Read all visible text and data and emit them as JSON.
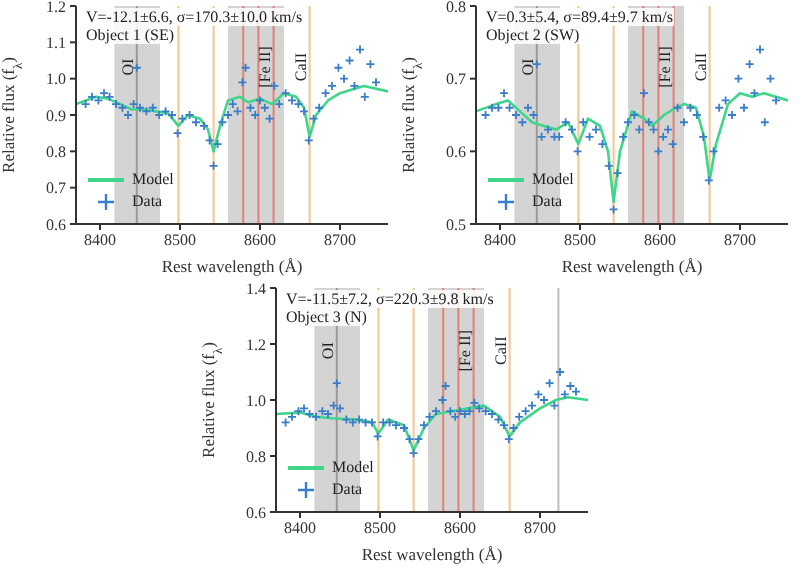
{
  "chart_data": [
    {
      "type": "line",
      "xlabel": "Rest wavelength (Å)",
      "ylabel": "Relative flux (f$_{λ}$)",
      "xlim": [
        8370,
        8760
      ],
      "xticks": [
        8400,
        8500,
        8600,
        8700
      ],
      "ylim": [
        0.6,
        1.2
      ],
      "yticks": [
        0.6,
        0.7,
        0.8,
        0.9,
        {
          "value": 1,
          "label": "1.0"
        },
        1.1,
        1.2
      ],
      "legend": "bottom left",
      "grid": false,
      "annotations": [
        "V=-12.1±6.6, σ=170.3±10.0 km/s",
        "Object 1 (SE)"
      ],
      "bands": [
        {
          "axis": "x",
          "from": 8418,
          "to": 8475,
          "color": "#d4d4d4"
        },
        {
          "axis": "x",
          "from": 8560,
          "to": 8630,
          "color": "#d4d4d4"
        }
      ],
      "ref_lines": [
        {
          "axis": "x",
          "value": 8446,
          "label": "OI",
          "color": "#999999"
        },
        {
          "axis": "x",
          "value": 8498,
          "color": "#f7c48a"
        },
        {
          "axis": "x",
          "value": 8542,
          "color": "#f7c48a"
        },
        {
          "axis": "x",
          "value": 8579,
          "color": "#e0826e"
        },
        {
          "axis": "x",
          "value": 8598,
          "color": "#e0826e"
        },
        {
          "axis": "x",
          "value": 8617,
          "label": "[Fe II]",
          "color": "#e0826e"
        },
        {
          "axis": "x",
          "value": 8662,
          "label": "CaII",
          "color": "#f7c48a"
        }
      ],
      "series": [
        {
          "name": "Model",
          "type": "line",
          "color": "#3ed68a",
          "marker": "none",
          "x": [
            8370,
            8395,
            8410,
            8425,
            8440,
            8455,
            8470,
            8485,
            8498,
            8510,
            8525,
            8535,
            8542,
            8550,
            8560,
            8575,
            8585,
            8600,
            8615,
            8630,
            8645,
            8655,
            8662,
            8670,
            8685,
            8700,
            8715,
            8730,
            8760
          ],
          "values": [
            0.93,
            0.95,
            0.945,
            0.93,
            0.915,
            0.915,
            0.91,
            0.905,
            0.87,
            0.9,
            0.89,
            0.86,
            0.8,
            0.87,
            0.94,
            0.95,
            0.935,
            0.945,
            0.93,
            0.96,
            0.95,
            0.92,
            0.84,
            0.9,
            0.94,
            0.96,
            0.97,
            0.98,
            0.965
          ]
        },
        {
          "name": "Data",
          "type": "scatter",
          "color": "#3a7dc9",
          "marker": "cross",
          "x": [
            8382,
            8390,
            8398,
            8405,
            8412,
            8420,
            8428,
            8435,
            8442,
            8446,
            8450,
            8458,
            8466,
            8474,
            8482,
            8490,
            8497,
            8503,
            8512,
            8520,
            8530,
            8537,
            8542,
            8547,
            8553,
            8560,
            8566,
            8572,
            8578,
            8582,
            8588,
            8594,
            8600,
            8606,
            8612,
            8618,
            8624,
            8632,
            8640,
            8648,
            8655,
            8661,
            8667,
            8674,
            8682,
            8690,
            8698,
            8705,
            8712,
            8718,
            8725,
            8731,
            8738,
            8745
          ],
          "values": [
            0.93,
            0.95,
            0.94,
            0.96,
            0.95,
            0.93,
            0.92,
            0.9,
            0.93,
            1.03,
            0.92,
            0.91,
            0.92,
            0.9,
            0.91,
            0.9,
            0.85,
            0.89,
            0.9,
            0.88,
            0.87,
            0.83,
            0.76,
            0.82,
            0.88,
            0.9,
            0.93,
            0.91,
            0.99,
            1.03,
            0.92,
            0.9,
            0.94,
            0.92,
            0.89,
            0.98,
            0.93,
            0.96,
            0.94,
            0.93,
            0.91,
            0.83,
            0.89,
            0.92,
            0.96,
            0.98,
            1.03,
            1.0,
            1.05,
            0.98,
            1.08,
            0.95,
            1.04,
            0.99
          ]
        }
      ]
    },
    {
      "type": "line",
      "xlabel": "Rest wavelength (Å)",
      "ylabel": "Relative flux (f$_{λ}$)",
      "xlim": [
        8370,
        8760
      ],
      "xticks": [
        8400,
        8500,
        8600,
        8700
      ],
      "ylim": [
        0.5,
        0.8
      ],
      "yticks": [
        0.5,
        0.6,
        0.7,
        0.8
      ],
      "legend": "bottom left",
      "grid": false,
      "annotations": [
        "V=0.3±5.4, σ=89.4±9.7 km/s",
        "Object 2 (SW)"
      ],
      "bands": [
        {
          "axis": "x",
          "from": 8418,
          "to": 8475,
          "color": "#d4d4d4"
        },
        {
          "axis": "x",
          "from": 8560,
          "to": 8630,
          "color": "#d4d4d4"
        }
      ],
      "ref_lines": [
        {
          "axis": "x",
          "value": 8446,
          "label": "OI",
          "color": "#999999"
        },
        {
          "axis": "x",
          "value": 8498,
          "color": "#f7c48a"
        },
        {
          "axis": "x",
          "value": 8542,
          "color": "#f7c48a"
        },
        {
          "axis": "x",
          "value": 8579,
          "color": "#e0826e"
        },
        {
          "axis": "x",
          "value": 8598,
          "color": "#e0826e"
        },
        {
          "axis": "x",
          "value": 8617,
          "label": "[Fe II]",
          "color": "#e0826e"
        },
        {
          "axis": "x",
          "value": 8662,
          "label": "CaII",
          "color": "#f7c48a"
        }
      ],
      "series": [
        {
          "name": "Model",
          "type": "line",
          "color": "#3ed68a",
          "marker": "none",
          "x": [
            8370,
            8395,
            8410,
            8425,
            8440,
            8455,
            8470,
            8485,
            8498,
            8510,
            8525,
            8535,
            8542,
            8550,
            8565,
            8580,
            8590,
            8605,
            8620,
            8630,
            8645,
            8655,
            8662,
            8670,
            8685,
            8700,
            8715,
            8730,
            8760
          ],
          "values": [
            0.655,
            0.665,
            0.67,
            0.655,
            0.64,
            0.635,
            0.63,
            0.64,
            0.61,
            0.645,
            0.635,
            0.6,
            0.53,
            0.6,
            0.655,
            0.645,
            0.635,
            0.65,
            0.66,
            0.665,
            0.66,
            0.62,
            0.56,
            0.61,
            0.665,
            0.68,
            0.675,
            0.68,
            0.67
          ]
        },
        {
          "name": "Data",
          "type": "scatter",
          "color": "#3a7dc9",
          "marker": "cross",
          "x": [
            8382,
            8390,
            8398,
            8405,
            8412,
            8420,
            8428,
            8435,
            8442,
            8446,
            8452,
            8460,
            8468,
            8474,
            8482,
            8490,
            8497,
            8504,
            8512,
            8520,
            8528,
            8536,
            8542,
            8547,
            8554,
            8560,
            8568,
            8574,
            8580,
            8586,
            8592,
            8598,
            8604,
            8610,
            8616,
            8622,
            8630,
            8638,
            8646,
            8654,
            8661,
            8667,
            8674,
            8682,
            8690,
            8698,
            8705,
            8712,
            8718,
            8725,
            8731,
            8738,
            8745
          ],
          "values": [
            0.65,
            0.66,
            0.66,
            0.68,
            0.66,
            0.65,
            0.64,
            0.66,
            0.65,
            0.72,
            0.62,
            0.63,
            0.62,
            0.62,
            0.64,
            0.63,
            0.6,
            0.64,
            0.62,
            0.63,
            0.61,
            0.58,
            0.52,
            0.57,
            0.62,
            0.64,
            0.65,
            0.63,
            0.68,
            0.64,
            0.63,
            0.6,
            0.62,
            0.63,
            0.61,
            0.66,
            0.64,
            0.66,
            0.65,
            0.62,
            0.56,
            0.6,
            0.66,
            0.67,
            0.65,
            0.7,
            0.66,
            0.72,
            0.68,
            0.74,
            0.64,
            0.7,
            0.67
          ]
        }
      ]
    },
    {
      "type": "line",
      "xlabel": "Rest wavelength (Å)",
      "ylabel": "Relative flux (f$_{λ}$)",
      "xlim": [
        8370,
        8760
      ],
      "xticks": [
        8400,
        8500,
        8600,
        8700
      ],
      "ylim": [
        0.6,
        1.4
      ],
      "yticks": [
        0.6,
        0.8,
        {
          "value": 1,
          "label": "1.0"
        },
        1.2,
        1.4
      ],
      "legend": "bottom left",
      "grid": false,
      "annotations": [
        "V=-11.5±7.2, σ=220.3±9.8 km/s",
        "Object 3 (N)"
      ],
      "bands": [
        {
          "axis": "x",
          "from": 8418,
          "to": 8475,
          "color": "#d4d4d4"
        },
        {
          "axis": "x",
          "from": 8560,
          "to": 8630,
          "color": "#d4d4d4"
        }
      ],
      "ref_lines": [
        {
          "axis": "x",
          "value": 8446,
          "label": "OI",
          "color": "#999999"
        },
        {
          "axis": "x",
          "value": 8498,
          "color": "#f7c48a"
        },
        {
          "axis": "x",
          "value": 8542,
          "color": "#f7c48a"
        },
        {
          "axis": "x",
          "value": 8579,
          "color": "#e0826e"
        },
        {
          "axis": "x",
          "value": 8598,
          "color": "#e0826e"
        },
        {
          "axis": "x",
          "value": 8617,
          "label": "[Fe II]",
          "color": "#e0826e"
        },
        {
          "axis": "x",
          "value": 8662,
          "label": "CaII",
          "color": "#f7c48a"
        },
        {
          "axis": "x",
          "value": 8723,
          "color": "#bbbbbb"
        }
      ],
      "series": [
        {
          "name": "Model",
          "type": "line",
          "color": "#3ed68a",
          "marker": "none",
          "x": [
            8370,
            8400,
            8420,
            8440,
            8470,
            8490,
            8498,
            8510,
            8530,
            8542,
            8555,
            8570,
            8590,
            8610,
            8630,
            8650,
            8662,
            8675,
            8700,
            8720,
            8735,
            8760
          ],
          "values": [
            0.95,
            0.955,
            0.94,
            0.935,
            0.93,
            0.92,
            0.88,
            0.93,
            0.91,
            0.82,
            0.9,
            0.95,
            0.96,
            0.97,
            0.98,
            0.94,
            0.87,
            0.92,
            0.97,
            1.0,
            1.01,
            1.0
          ]
        },
        {
          "name": "Data",
          "type": "scatter",
          "color": "#3a7dc9",
          "marker": "cross",
          "x": [
            8382,
            8390,
            8398,
            8405,
            8412,
            8420,
            8428,
            8435,
            8442,
            8446,
            8450,
            8458,
            8466,
            8474,
            8482,
            8490,
            8497,
            8504,
            8512,
            8520,
            8530,
            8537,
            8542,
            8548,
            8555,
            8562,
            8570,
            8578,
            8582,
            8588,
            8594,
            8600,
            8606,
            8612,
            8618,
            8624,
            8632,
            8640,
            8648,
            8655,
            8661,
            8667,
            8674,
            8682,
            8690,
            8698,
            8705,
            8712,
            8718,
            8725,
            8731,
            8738,
            8745
          ],
          "values": [
            0.92,
            0.94,
            0.96,
            0.97,
            0.95,
            0.94,
            0.96,
            0.95,
            0.98,
            1.06,
            0.97,
            0.93,
            0.92,
            0.93,
            0.92,
            0.92,
            0.87,
            0.92,
            0.92,
            0.91,
            0.9,
            0.86,
            0.81,
            0.86,
            0.91,
            0.94,
            0.96,
            1.0,
            1.05,
            0.96,
            0.94,
            0.96,
            0.95,
            0.96,
            0.99,
            0.97,
            0.96,
            0.95,
            0.93,
            0.91,
            0.86,
            0.9,
            0.94,
            0.96,
            0.98,
            1.02,
            1.0,
            1.06,
            0.98,
            1.1,
            1.02,
            1.05,
            1.03
          ]
        }
      ]
    }
  ]
}
